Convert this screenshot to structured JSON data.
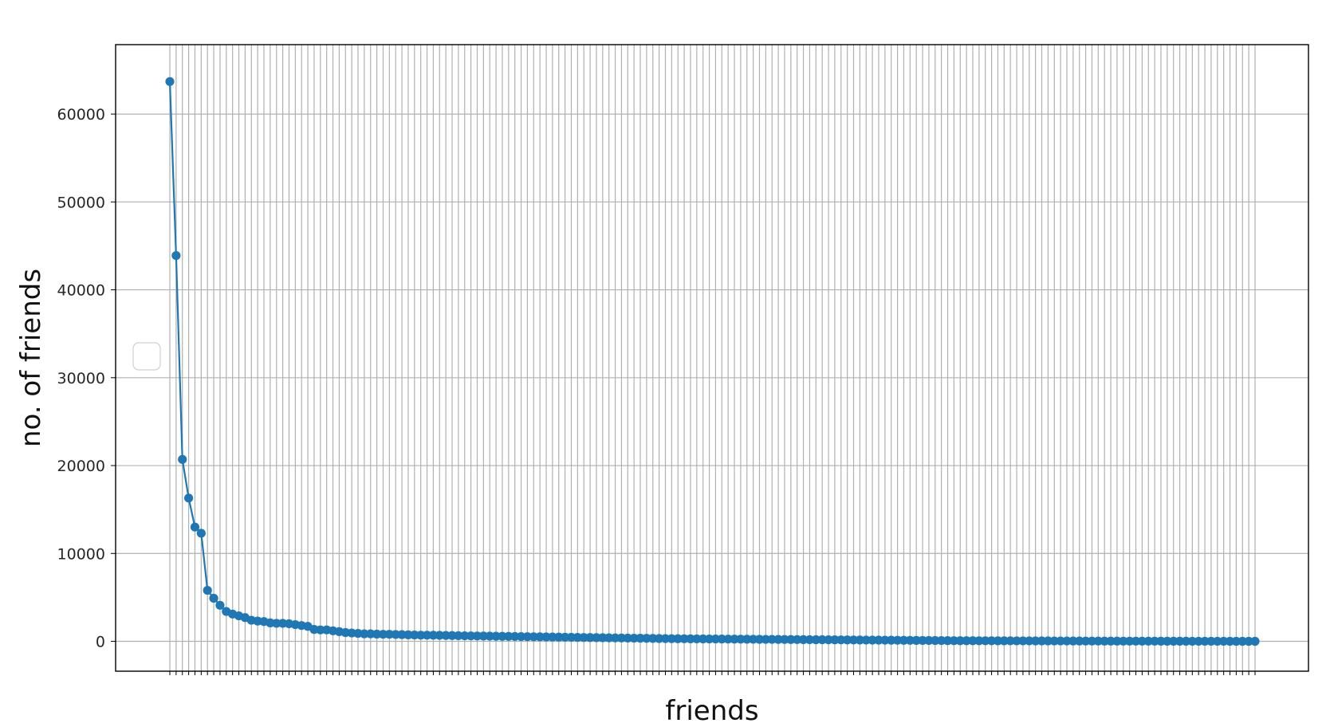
{
  "chart_data": {
    "type": "line",
    "xlabel": "friends",
    "ylabel": "no. of friends",
    "ylim": [
      -3400,
      67900
    ],
    "yticks": [
      0,
      10000,
      20000,
      30000,
      40000,
      50000,
      60000
    ],
    "ytick_labels": [
      "0",
      "10000",
      "20000",
      "30000",
      "40000",
      "50000",
      "60000"
    ],
    "grid": true,
    "legend": "center-left, empty",
    "series": [
      {
        "color": "#1f77b4",
        "marker": "circle",
        "values": [
          63700,
          43900,
          20700,
          16300,
          13000,
          12300,
          5800,
          4900,
          4100,
          3400,
          3100,
          2900,
          2700,
          2400,
          2300,
          2250,
          2100,
          2050,
          2050,
          2000,
          1900,
          1800,
          1700,
          1350,
          1300,
          1300,
          1200,
          1100,
          1000,
          950,
          900,
          850,
          850,
          820,
          800,
          800,
          780,
          760,
          740,
          720,
          700,
          700,
          690,
          680,
          670,
          660,
          640,
          630,
          620,
          610,
          600,
          590,
          580,
          570,
          560,
          550,
          540,
          530,
          520,
          510,
          500,
          490,
          480,
          470,
          460,
          450,
          440,
          430,
          420,
          410,
          400,
          390,
          380,
          370,
          360,
          350,
          340,
          330,
          320,
          310,
          300,
          295,
          290,
          285,
          280,
          275,
          270,
          265,
          260,
          255,
          250,
          245,
          240,
          235,
          230,
          225,
          220,
          215,
          210,
          205,
          200,
          195,
          190,
          185,
          180,
          175,
          170,
          165,
          160,
          155,
          150,
          145,
          140,
          135,
          130,
          125,
          120,
          115,
          110,
          105,
          100,
          95,
          90,
          85,
          80,
          75,
          72,
          70,
          68,
          66,
          64,
          62,
          60,
          58,
          56,
          54,
          52,
          50,
          48,
          46,
          44,
          42,
          40,
          38,
          36,
          34,
          32,
          30,
          28,
          26,
          24,
          22,
          20,
          19,
          18,
          17,
          16,
          15,
          14,
          13,
          12,
          11,
          10,
          9,
          8,
          7,
          6,
          5,
          4,
          3,
          2,
          1,
          0,
          0
        ]
      }
    ]
  }
}
